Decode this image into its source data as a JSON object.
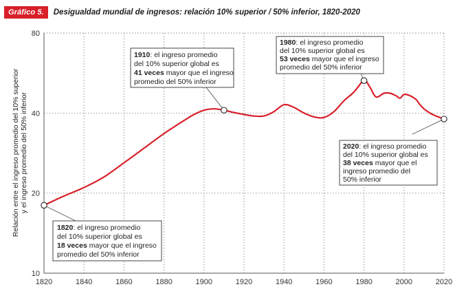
{
  "header": {
    "badge": "Gráfico 5.",
    "title": "Desigualdad mundial de ingresos: relación 10% superior / 50% inferior, 1820-2020"
  },
  "colors": {
    "line": "#d81f2a",
    "badge": "#d81f2a"
  },
  "chart_data": {
    "type": "line",
    "title": "Desigualdad mundial de ingresos: relación 10% superior / 50% inferior, 1820-2020",
    "ylabel_lines": [
      "Relación entre el ingreso promedio del 10% superior",
      "y el ingreso promedio del 50% inferior"
    ],
    "xlabel": "",
    "y_scale": "log",
    "ylim": [
      10,
      80
    ],
    "xlim": [
      1820,
      2020
    ],
    "x_ticks": [
      1820,
      1840,
      1860,
      1880,
      1900,
      1920,
      1940,
      1960,
      1980,
      2000,
      2020
    ],
    "y_ticks": [
      10,
      20,
      40,
      80
    ],
    "grid": true,
    "series": [
      {
        "x": [
          1820,
          1830,
          1840,
          1850,
          1860,
          1870,
          1880,
          1890,
          1895,
          1900,
          1905,
          1910,
          1915,
          1920,
          1925,
          1930,
          1935,
          1940,
          1945,
          1950,
          1955,
          1960,
          1965,
          1970,
          1975,
          1980,
          1983,
          1986,
          1990,
          1993,
          1996,
          1998,
          2000,
          2003,
          2006,
          2008,
          2010,
          2013,
          2016,
          2020
        ],
        "y": [
          18,
          19.5,
          21,
          23,
          26,
          29.5,
          33.5,
          37.5,
          39.5,
          41,
          41.5,
          41,
          40.2,
          39.5,
          39,
          39,
          40.5,
          43,
          42,
          40,
          38.7,
          38.5,
          40.5,
          44.5,
          48,
          53,
          50,
          46,
          47.5,
          47.5,
          46.5,
          45.5,
          47,
          46.5,
          45,
          43,
          41.5,
          40,
          39,
          38
        ]
      }
    ],
    "highlight_points": [
      {
        "x": 1820,
        "y": 18
      },
      {
        "x": 1910,
        "y": 41
      },
      {
        "x": 1980,
        "y": 53
      },
      {
        "x": 2020,
        "y": 38
      }
    ],
    "annotations": [
      {
        "year": "1820",
        "t1": ": el ingreso promedio",
        "t2": "del 10% superior global es",
        "bold": "18 veces",
        "t3": " mayor que el ingreso",
        "t4": "promedio del 50% inferior"
      },
      {
        "year": "1910",
        "t1": ": el ingreso promedio",
        "t2": "del 10% superior global es",
        "bold": "41 veces",
        "t3": " mayor que el ingreso",
        "t4": "promedio del 50% inferior"
      },
      {
        "year": "1980",
        "t1": ": el ingreso promedio",
        "t2": "del 10% superior global es",
        "bold": "53 veces",
        "t3": " mayor que el ingreso",
        "t4": "promedio del 50% inferior"
      },
      {
        "year": "2020",
        "t1": ": el ingreso promedio",
        "t2": "del 10% superior global es",
        "bold": "38 veces",
        "t3": " mayor que el",
        "t4": "ingreso promedio del",
        "t5": "50% inferior"
      }
    ]
  }
}
